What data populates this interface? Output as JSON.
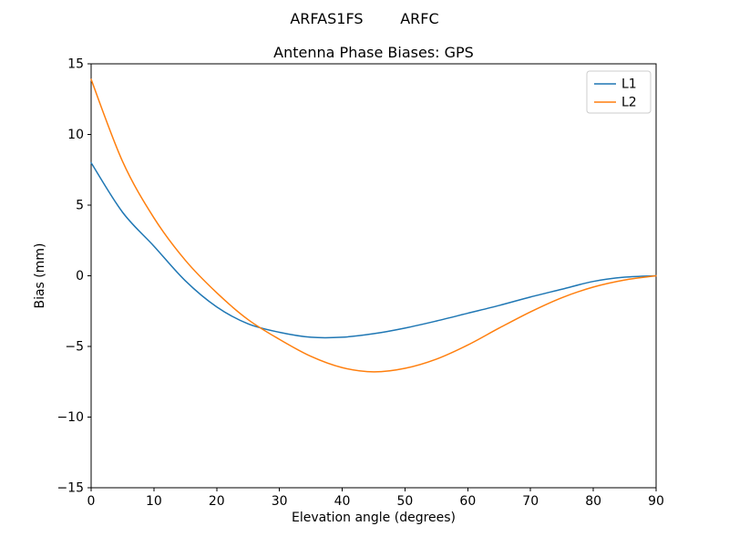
{
  "suptitle": "ARFAS1FS        ARFC",
  "chart_data": {
    "type": "line",
    "title": "Antenna Phase Biases: GPS",
    "xlabel": "Elevation angle (degrees)",
    "ylabel": "Bias (mm)",
    "xlim": [
      0,
      90
    ],
    "ylim": [
      -15,
      15
    ],
    "xticks": [
      0,
      10,
      20,
      30,
      40,
      50,
      60,
      70,
      80,
      90
    ],
    "yticks": [
      -15,
      -10,
      -5,
      0,
      5,
      10,
      15
    ],
    "grid": false,
    "legend_position": "upper right",
    "x": [
      0,
      5,
      10,
      15,
      20,
      25,
      30,
      35,
      40,
      45,
      50,
      55,
      60,
      65,
      70,
      75,
      80,
      85,
      90
    ],
    "series": [
      {
        "name": "L1",
        "color": "#1f77b4",
        "values": [
          8.0,
          4.5,
          2.1,
          -0.35,
          -2.2,
          -3.4,
          -4.0,
          -4.35,
          -4.35,
          -4.1,
          -3.7,
          -3.2,
          -2.65,
          -2.1,
          -1.5,
          -0.95,
          -0.4,
          -0.1,
          0.0
        ]
      },
      {
        "name": "L2",
        "color": "#ff7f0e",
        "values": [
          13.9,
          8.1,
          4.1,
          1.1,
          -1.2,
          -3.1,
          -4.5,
          -5.7,
          -6.5,
          -6.8,
          -6.55,
          -5.9,
          -4.9,
          -3.7,
          -2.55,
          -1.55,
          -0.8,
          -0.3,
          0.0
        ]
      }
    ]
  }
}
